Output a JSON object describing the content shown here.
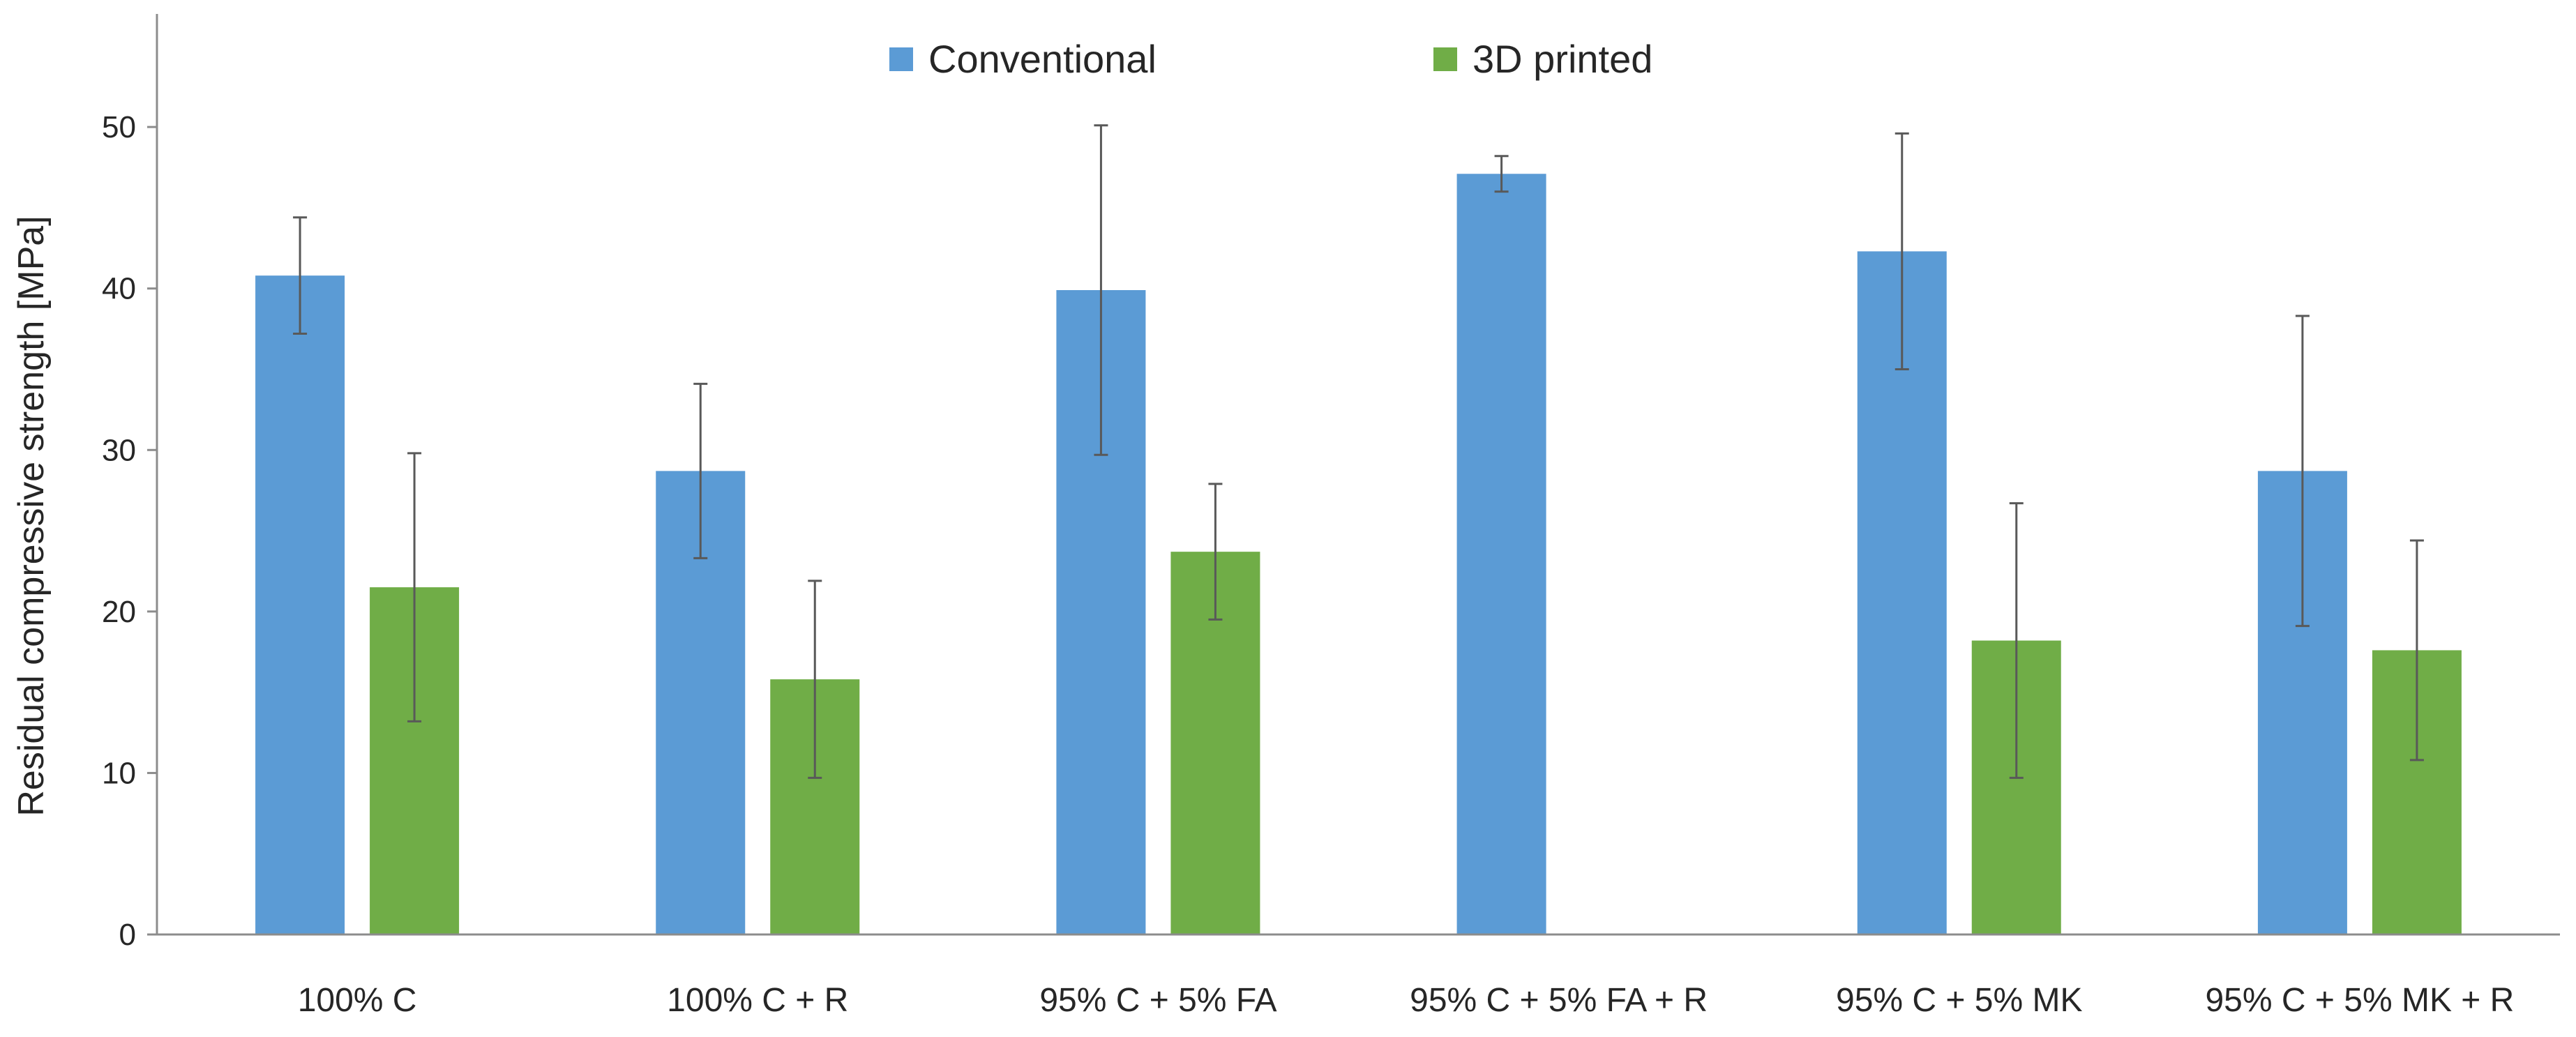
{
  "chart_data": {
    "type": "bar",
    "title": "",
    "xlabel": "",
    "ylabel": "Residual compressive strength [MPa]",
    "ylim": [
      0,
      57
    ],
    "yticks": [
      0,
      10,
      20,
      30,
      40,
      50
    ],
    "grid": false,
    "legend": "top-center",
    "categories": [
      "100% C",
      "100% C + R",
      "95% C + 5% FA",
      "95% C + 5% FA + R",
      "95% C + 5% MK",
      "95% C + 5% MK + R"
    ],
    "series": [
      {
        "name": "Conventional",
        "color": "#5b9bd5",
        "values": [
          40.8,
          28.7,
          39.9,
          47.1,
          42.3,
          28.7
        ],
        "error": [
          3.6,
          5.4,
          10.2,
          1.1,
          7.3,
          9.6
        ]
      },
      {
        "name": "3D printed",
        "color": "#70ad47",
        "values": [
          21.5,
          15.8,
          23.7,
          null,
          18.2,
          17.6
        ],
        "error": [
          8.3,
          6.1,
          4.2,
          null,
          8.5,
          6.8
        ]
      }
    ]
  }
}
